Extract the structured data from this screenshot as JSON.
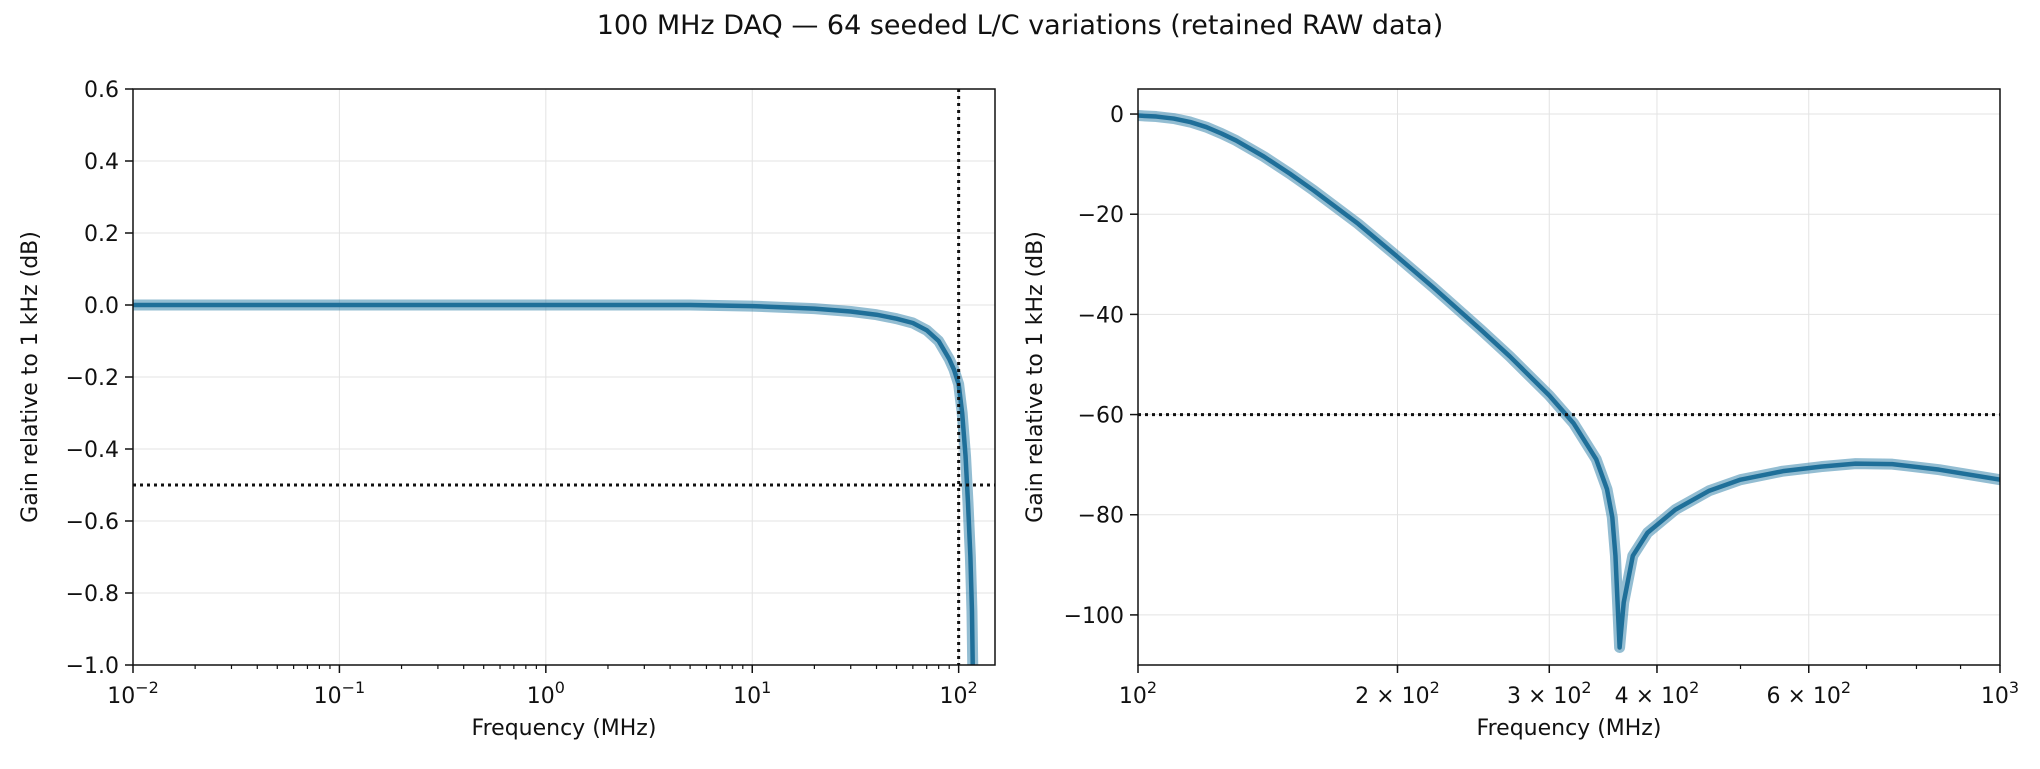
{
  "title": "100 MHz DAQ — 64 seeded L/C variations (retained RAW data)",
  "colors": {
    "curve": "#1f6f99",
    "curve_band": "#3b86ad",
    "grid": "#e3e3e3",
    "reference": "#111111"
  },
  "chart_data": [
    {
      "type": "line",
      "xscale": "log",
      "xlim": [
        0.01,
        150
      ],
      "ylim": [
        -1.0,
        0.6
      ],
      "xlabel": "Frequency (MHz)",
      "ylabel": "Gain relative to 1 kHz (dB)",
      "grid": true,
      "xticks": [
        {
          "value": 0.01,
          "base": "10",
          "exp": "−2"
        },
        {
          "value": 0.1,
          "base": "10",
          "exp": "−1"
        },
        {
          "value": 1,
          "base": "10",
          "exp": "0"
        },
        {
          "value": 10,
          "base": "10",
          "exp": "1"
        },
        {
          "value": 100,
          "base": "10",
          "exp": "2"
        }
      ],
      "yticks": [
        {
          "value": 0.6,
          "label": "0.6"
        },
        {
          "value": 0.4,
          "label": "0.4"
        },
        {
          "value": 0.2,
          "label": "0.2"
        },
        {
          "value": 0.0,
          "label": "0.0"
        },
        {
          "value": -0.2,
          "label": "−0.2"
        },
        {
          "value": -0.4,
          "label": "−0.4"
        },
        {
          "value": -0.6,
          "label": "−0.6"
        },
        {
          "value": -0.8,
          "label": "−0.8"
        },
        {
          "value": -1.0,
          "label": "−1.0"
        }
      ],
      "hlines": [
        -0.5
      ],
      "vlines": [
        100
      ],
      "series": [
        {
          "x": [
            0.01,
            0.1,
            1,
            5,
            10,
            20,
            30,
            40,
            50,
            60,
            70,
            80,
            90,
            95,
            100,
            104,
            108,
            111,
            114,
            116,
            117
          ],
          "y": [
            0,
            0,
            0,
            0,
            -0.003,
            -0.01,
            -0.018,
            -0.027,
            -0.038,
            -0.05,
            -0.07,
            -0.1,
            -0.15,
            -0.18,
            -0.22,
            -0.3,
            -0.42,
            -0.55,
            -0.7,
            -0.85,
            -1.0
          ]
        }
      ]
    },
    {
      "type": "line",
      "xscale": "log",
      "xlim": [
        100,
        1000
      ],
      "ylim": [
        -110,
        5
      ],
      "xlabel": "Frequency (MHz)",
      "ylabel": "Gain relative to 1 kHz (dB)",
      "grid": true,
      "xticks": [
        {
          "value": 100,
          "base": "10",
          "exp": "2"
        },
        {
          "value": 200,
          "base": "2 × 10",
          "exp": "2"
        },
        {
          "value": 300,
          "base": "3 × 10",
          "exp": "2"
        },
        {
          "value": 400,
          "base": "4 × 10",
          "exp": "2"
        },
        {
          "value": 600,
          "base": "6 × 10",
          "exp": "2"
        },
        {
          "value": 1000,
          "base": "10",
          "exp": "3"
        }
      ],
      "yticks": [
        {
          "value": 0,
          "label": "0"
        },
        {
          "value": -20,
          "label": "−20"
        },
        {
          "value": -40,
          "label": "−40"
        },
        {
          "value": -60,
          "label": "−60"
        },
        {
          "value": -80,
          "label": "−80"
        },
        {
          "value": -100,
          "label": "−100"
        }
      ],
      "hlines": [
        -60
      ],
      "vlines": [],
      "series": [
        {
          "x": [
            100,
            105,
            110,
            115,
            120,
            125,
            130,
            140,
            150,
            160,
            180,
            200,
            220,
            250,
            270,
            300,
            320,
            340,
            350,
            355,
            358,
            362,
            366,
            375,
            390,
            420,
            460,
            500,
            560,
            620,
            680,
            750,
            850,
            1000
          ],
          "y": [
            -0.3,
            -0.5,
            -0.9,
            -1.6,
            -2.6,
            -3.9,
            -5.3,
            -8.5,
            -11.9,
            -15.3,
            -21.9,
            -28.5,
            -34.6,
            -43.1,
            -48.4,
            -56.2,
            -61.7,
            -68.9,
            -74.9,
            -80.5,
            -88.2,
            -106.5,
            -97.5,
            -88.2,
            -83.6,
            -79.0,
            -75.2,
            -73.0,
            -71.3,
            -70.4,
            -69.8,
            -69.9,
            -71.0,
            -73.0
          ]
        }
      ]
    }
  ]
}
